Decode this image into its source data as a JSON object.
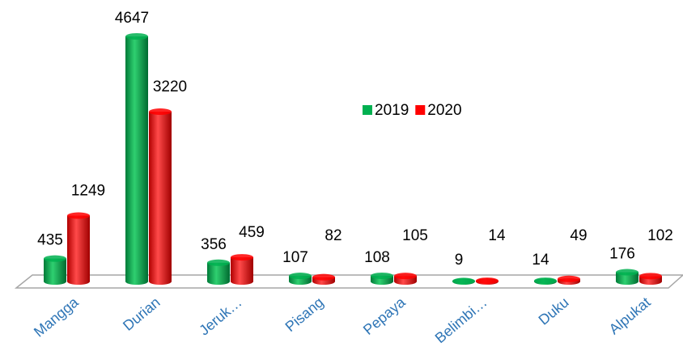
{
  "chart_data": {
    "type": "bar3d",
    "categories": [
      "Mangga",
      "Durian",
      "Jeruk…",
      "Pisang",
      "Pepaya",
      "Belimbi…",
      "Duku",
      "Alpukat"
    ],
    "series": [
      {
        "name": "2019",
        "color": "#00b050",
        "values": [
          435,
          4647,
          356,
          107,
          108,
          9,
          14,
          176
        ]
      },
      {
        "name": "2020",
        "color": "#ff0000",
        "values": [
          1249,
          3220,
          459,
          82,
          105,
          14,
          49,
          102
        ]
      }
    ],
    "legend": "top-right"
  }
}
